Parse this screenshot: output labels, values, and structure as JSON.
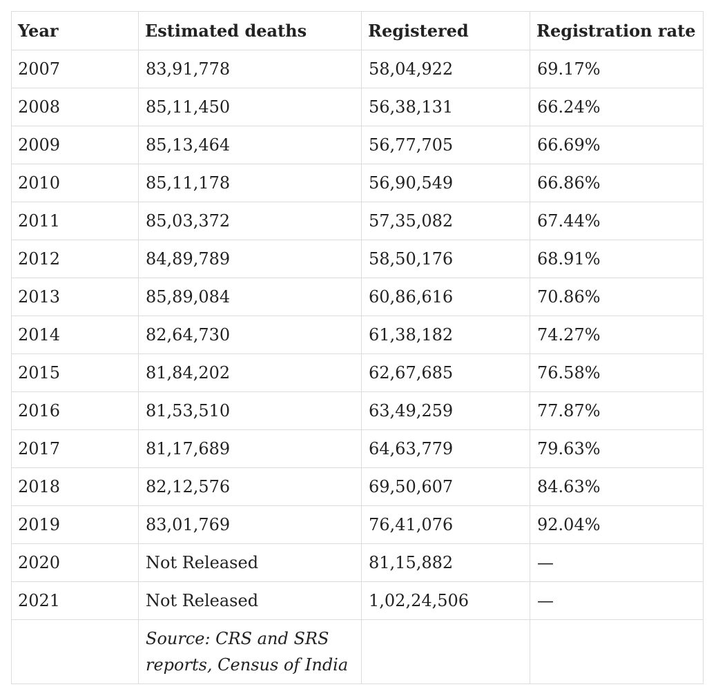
{
  "table": {
    "headers": [
      "Year",
      "Estimated deaths",
      "Registered",
      "Registration rate"
    ],
    "rows": [
      [
        "2007",
        "83,91,778",
        "58,04,922",
        "69.17%"
      ],
      [
        "2008",
        "85,11,450",
        "56,38,131",
        "66.24%"
      ],
      [
        "2009",
        "85,13,464",
        "56,77,705",
        "66.69%"
      ],
      [
        "2010",
        "85,11,178",
        "56,90,549",
        "66.86%"
      ],
      [
        "2011",
        "85,03,372",
        "57,35,082",
        "67.44%"
      ],
      [
        "2012",
        "84,89,789",
        "58,50,176",
        "68.91%"
      ],
      [
        "2013",
        "85,89,084",
        "60,86,616",
        "70.86%"
      ],
      [
        "2014",
        "82,64,730",
        "61,38,182",
        "74.27%"
      ],
      [
        "2015",
        "81,84,202",
        "62,67,685",
        "76.58%"
      ],
      [
        "2016",
        "81,53,510",
        "63,49,259",
        "77.87%"
      ],
      [
        "2017",
        "81,17,689",
        "64,63,779",
        "79.63%"
      ],
      [
        "2018",
        "82,12,576",
        "69,50,607",
        "84.63%"
      ],
      [
        "2019",
        "83,01,769",
        "76,41,076",
        "92.04%"
      ],
      [
        "2020",
        "Not Released",
        "81,15,882",
        "—"
      ],
      [
        "2021",
        "Not Released",
        "1,02,24,506",
        "—"
      ]
    ],
    "source": "Source: CRS and SRS reports, Census of India"
  },
  "colors": {
    "border": "#dcdcdc",
    "text": "#222222",
    "background": "#ffffff"
  }
}
